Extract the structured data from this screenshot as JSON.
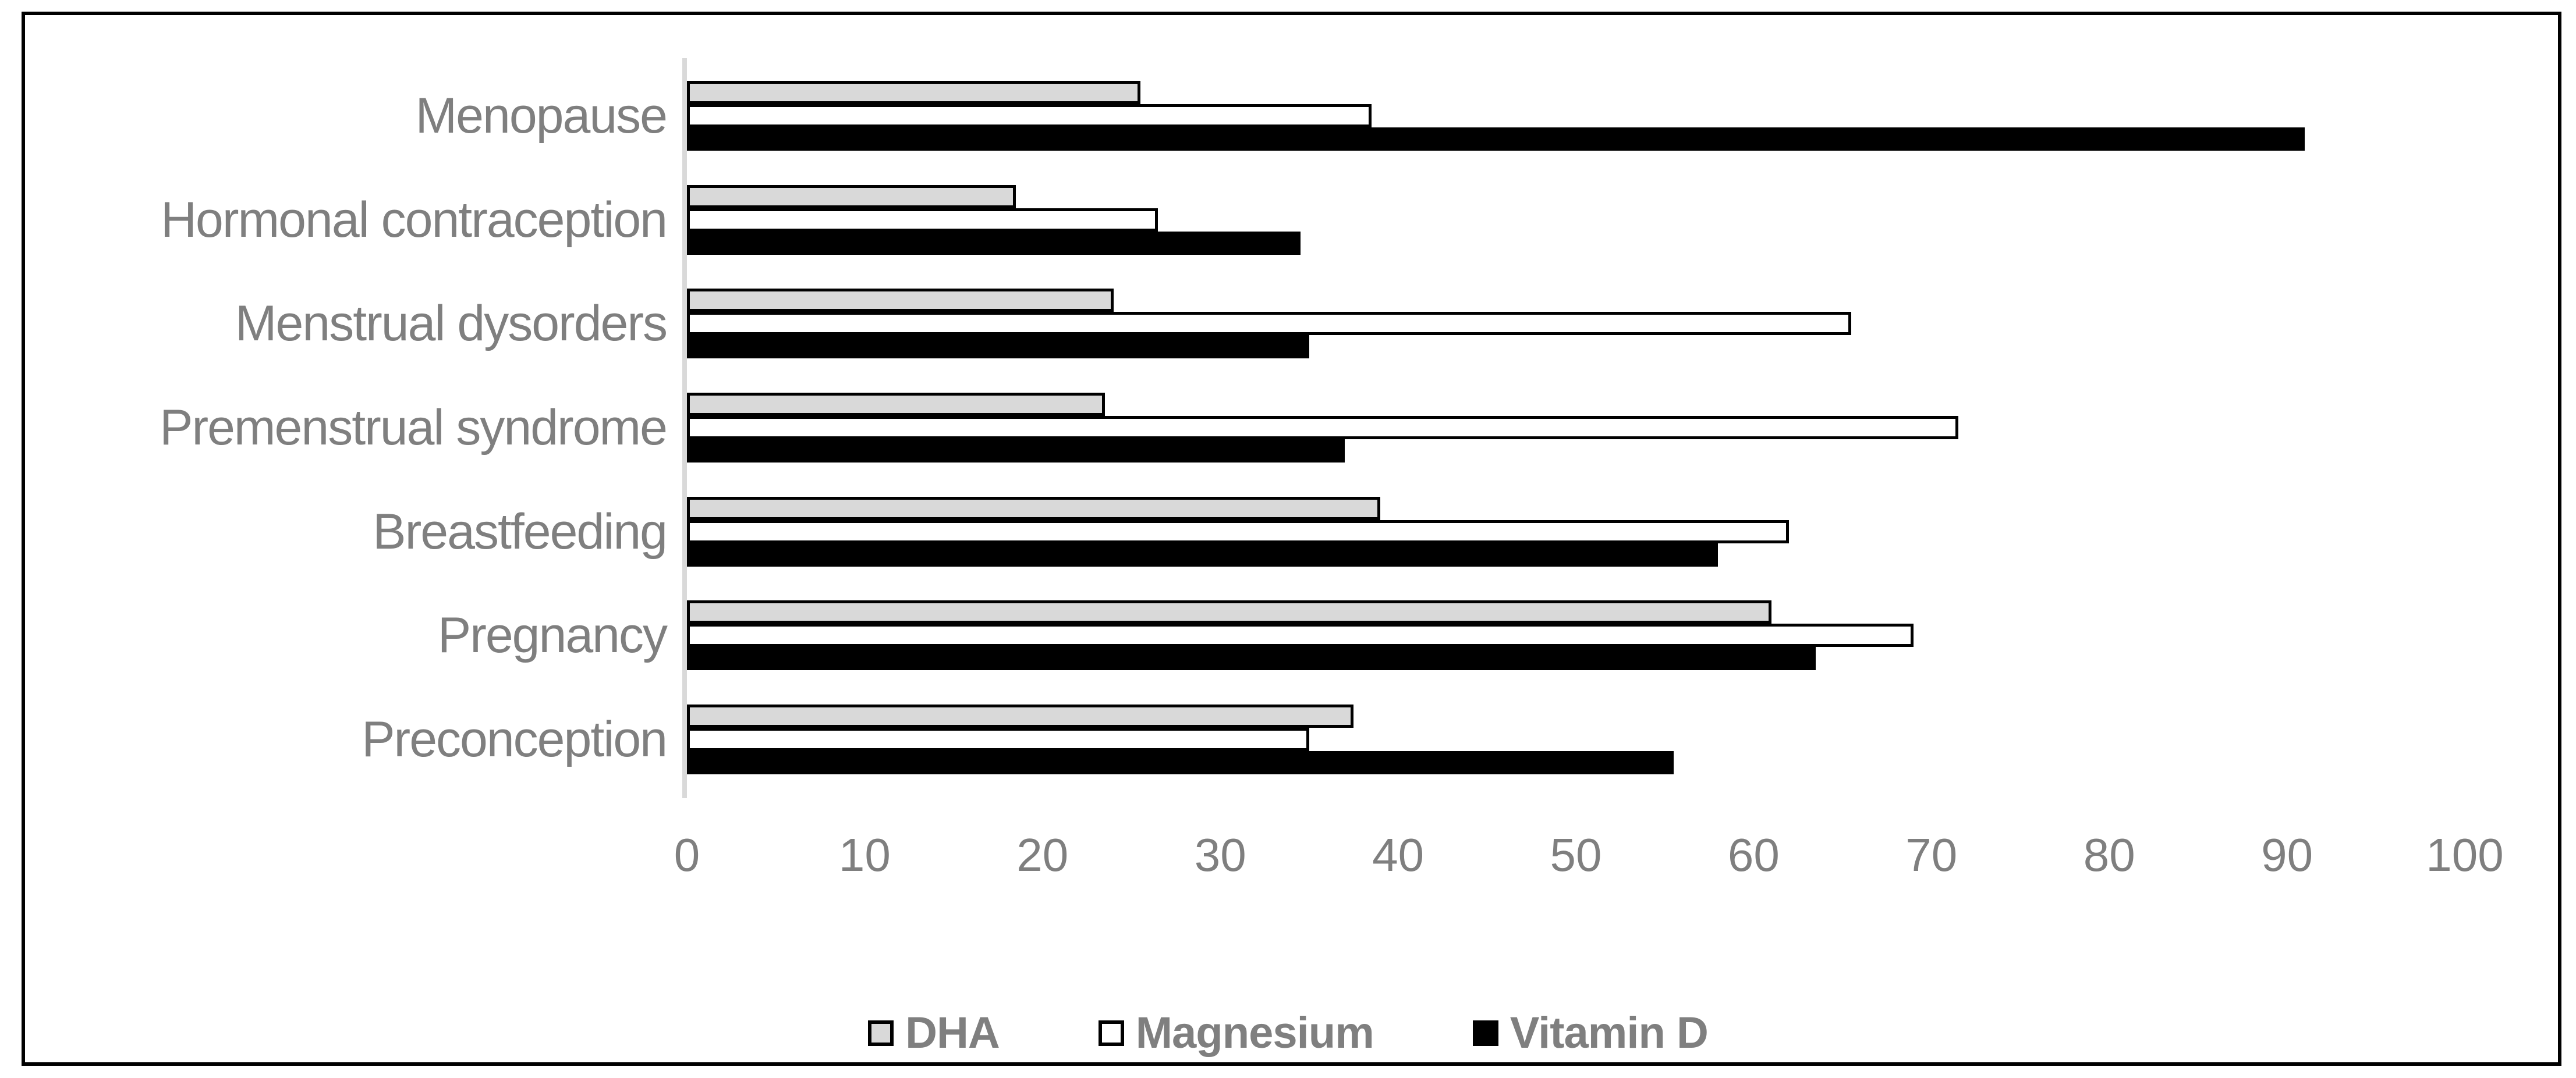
{
  "chart_data": {
    "type": "bar",
    "orientation": "horizontal",
    "title": "",
    "xlabel": "",
    "ylabel": "",
    "categories": [
      "Menopause",
      "Hormonal contraception",
      "Menstrual dysorders",
      "Premenstrual syndrome",
      "Breastfeeding",
      "Pregnancy",
      "Preconception"
    ],
    "series": [
      {
        "name": "DHA",
        "fill": "#D9D9D9",
        "outline": "#000000",
        "values": [
          25.5,
          18.5,
          24,
          23.5,
          39,
          61,
          37.5
        ]
      },
      {
        "name": "Magnesium",
        "fill": "#FFFFFF",
        "outline": "#000000",
        "values": [
          38.5,
          26.5,
          65.5,
          71.5,
          62,
          69,
          35
        ]
      },
      {
        "name": "Vitamin D",
        "fill": "#000000",
        "outline": "#000000",
        "values": [
          91,
          34.5,
          35,
          37,
          58,
          63.5,
          55.5
        ]
      }
    ],
    "xlim": [
      0,
      100
    ],
    "xticks": [
      0,
      10,
      20,
      30,
      40,
      50,
      60,
      70,
      80,
      90,
      100
    ],
    "grid": false,
    "legend_position": "bottom",
    "colors": {
      "text": "#7F7F7F",
      "axis_line": "#D9D9D9",
      "frame_border": "#000000",
      "background": "#FFFFFF"
    }
  }
}
